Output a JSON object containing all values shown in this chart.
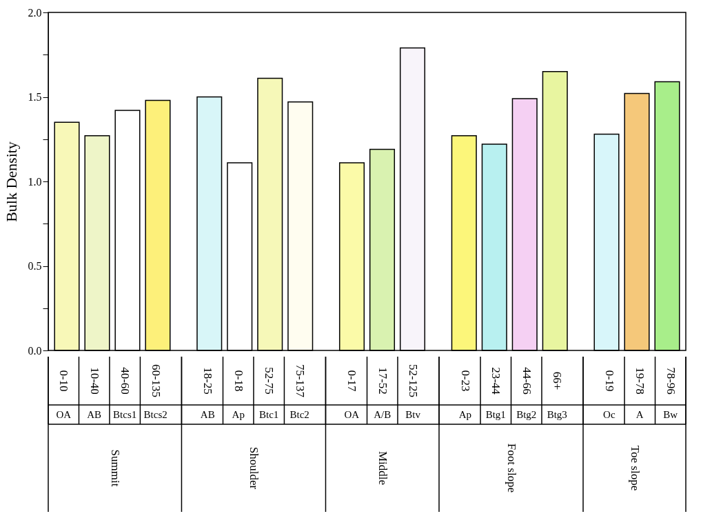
{
  "chart_data": {
    "type": "bar",
    "ylabel": "Bulk Density",
    "categories": [
      "0-10",
      "10-40",
      "40-60",
      "60-135",
      "18-25",
      "0-18",
      "52-75",
      "75-137",
      "0-17",
      "17-52",
      "52-125",
      "0-23",
      "23-44",
      "44-66",
      "66+",
      "0-19",
      "19-78",
      "78-96"
    ],
    "series": [
      {
        "values": [
          1.35,
          1.27,
          1.42,
          1.48,
          null,
          null,
          null,
          null,
          null,
          null,
          null,
          null,
          null,
          null,
          null,
          null,
          null,
          null
        ],
        "colors": [
          "#f8f8b8",
          "#eef5c8",
          "#ffffff",
          "#fdf07a",
          null,
          null,
          null,
          null,
          null,
          null,
          null,
          null,
          null,
          null,
          null,
          null,
          null,
          null
        ]
      },
      {
        "values": [
          null,
          null,
          null,
          null,
          1.5,
          1.11,
          1.61,
          1.47,
          null,
          null,
          null,
          null,
          null,
          null,
          null,
          null,
          null,
          null
        ],
        "colors": [
          null,
          null,
          null,
          null,
          "#d8f6f8",
          "#ffffff",
          "#f6f8b8",
          "#fffdf0",
          null,
          null,
          null,
          null,
          null,
          null,
          null,
          null,
          null,
          null
        ]
      },
      {
        "values": [
          null,
          null,
          null,
          null,
          null,
          null,
          null,
          null,
          1.11,
          1.19,
          1.79,
          null,
          null,
          null,
          null,
          null,
          null,
          null
        ],
        "colors": [
          null,
          null,
          null,
          null,
          null,
          null,
          null,
          null,
          "#fbfaa8",
          "#d9f2b0",
          "#f8f4fa",
          null,
          null,
          null,
          null,
          null,
          null,
          null
        ]
      },
      {
        "values": [
          null,
          null,
          null,
          null,
          null,
          null,
          null,
          null,
          null,
          null,
          null,
          1.27,
          1.22,
          1.49,
          1.65,
          null,
          null,
          null
        ],
        "colors": [
          null,
          null,
          null,
          null,
          null,
          null,
          null,
          null,
          null,
          null,
          null,
          "#fcf67a",
          "#b8f0f0",
          "#f5d0f3",
          "#e8f5a0",
          null,
          null,
          null
        ]
      },
      {
        "values": [
          null,
          null,
          null,
          null,
          null,
          null,
          null,
          null,
          null,
          null,
          null,
          null,
          null,
          null,
          null,
          1.28,
          1.52,
          1.59
        ],
        "colors": [
          null,
          null,
          null,
          null,
          null,
          null,
          null,
          null,
          null,
          null,
          null,
          null,
          null,
          null,
          null,
          "#d8f6fa",
          "#f5c87a",
          "#a8ee8a"
        ]
      }
    ],
    "ylim": [
      0,
      2.0
    ],
    "yticks": [
      {
        "value": 0,
        "label": "0.0"
      },
      {
        "value": 0.25,
        "label": null
      },
      {
        "value": 0.5,
        "label": "0.5"
      },
      {
        "value": 0.75,
        "label": null
      },
      {
        "value": 1.0,
        "label": "1.0"
      },
      {
        "value": 1.25,
        "label": null
      },
      {
        "value": 1.5,
        "label": "1.5"
      },
      {
        "value": 1.75,
        "label": null
      },
      {
        "value": 2.0,
        "label": "2.0"
      }
    ],
    "grid": false,
    "legend": false,
    "annotations": [
      "OA",
      "AB",
      "Btcs1",
      "Btcs2",
      "AB",
      "Ap",
      "Btc1",
      "Btc2",
      "OA",
      "A/B",
      "Btv",
      "Ap",
      "Btg1",
      "Btg2",
      "Btg3",
      "Oc",
      "A",
      "Bw",
      "Summit",
      "Shoulder",
      "Middle",
      "Foot slope",
      "Toe slope"
    ]
  }
}
